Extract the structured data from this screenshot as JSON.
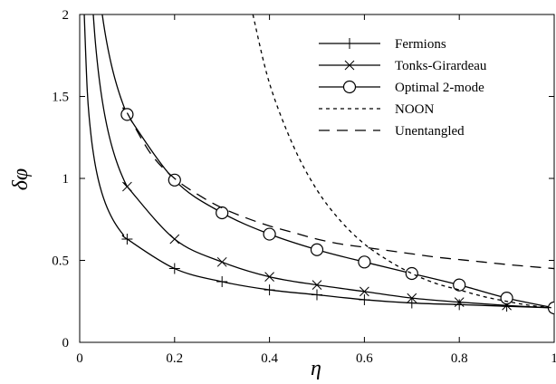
{
  "chart_data": {
    "type": "line",
    "xlabel": "η",
    "ylabel": "δφ",
    "xlim": [
      0,
      1
    ],
    "ylim": [
      0,
      2
    ],
    "xticks": [
      "0",
      "0.2",
      "0.4",
      "0.6",
      "0.8",
      "1"
    ],
    "yticks": [
      "0",
      "0.5",
      "1",
      "1.5",
      "2"
    ],
    "grid": false,
    "legend_position": "top-right",
    "series": [
      {
        "name": "Fermions",
        "marker": "plus",
        "line": "solid",
        "x": [
          0.1,
          0.2,
          0.3,
          0.4,
          0.5,
          0.6,
          0.7,
          0.8,
          0.9,
          1.0
        ],
        "y": [
          0.63,
          0.45,
          0.37,
          0.32,
          0.29,
          0.26,
          0.24,
          0.23,
          0.22,
          0.21
        ]
      },
      {
        "name": "Tonks-Girardeau",
        "marker": "cross",
        "line": "solid",
        "x": [
          0.1,
          0.2,
          0.3,
          0.4,
          0.5,
          0.6,
          0.7,
          0.8,
          0.9,
          1.0
        ],
        "y": [
          0.95,
          0.63,
          0.49,
          0.4,
          0.35,
          0.31,
          0.27,
          0.245,
          0.225,
          0.21
        ]
      },
      {
        "name": "Optimal 2-mode",
        "marker": "circle",
        "line": "solid",
        "x": [
          0.1,
          0.2,
          0.3,
          0.4,
          0.5,
          0.6,
          0.7,
          0.8,
          0.9,
          1.0
        ],
        "y": [
          1.39,
          0.99,
          0.79,
          0.66,
          0.565,
          0.49,
          0.42,
          0.35,
          0.27,
          0.21
        ]
      },
      {
        "name": "NOON",
        "marker": "none",
        "line": "short-dash",
        "x": [
          0.365,
          0.4,
          0.45,
          0.5,
          0.55,
          0.6,
          0.65,
          0.7,
          0.75,
          0.8,
          0.85,
          0.9,
          0.95,
          1.0
        ],
        "y": [
          2.0,
          1.58,
          1.2,
          0.93,
          0.74,
          0.6,
          0.5,
          0.42,
          0.36,
          0.32,
          0.28,
          0.25,
          0.225,
          0.21
        ]
      },
      {
        "name": "Unentangled",
        "marker": "none",
        "line": "long-dash",
        "x": [
          0.1,
          0.15,
          0.2,
          0.25,
          0.3,
          0.35,
          0.4,
          0.45,
          0.5,
          0.55,
          0.6,
          0.65,
          0.7,
          0.75,
          0.8,
          0.85,
          0.9,
          0.95,
          1.0
        ],
        "y": [
          1.4,
          1.15,
          1.0,
          0.9,
          0.82,
          0.76,
          0.71,
          0.67,
          0.63,
          0.6,
          0.58,
          0.56,
          0.54,
          0.52,
          0.505,
          0.49,
          0.475,
          0.462,
          0.45
        ]
      }
    ]
  }
}
